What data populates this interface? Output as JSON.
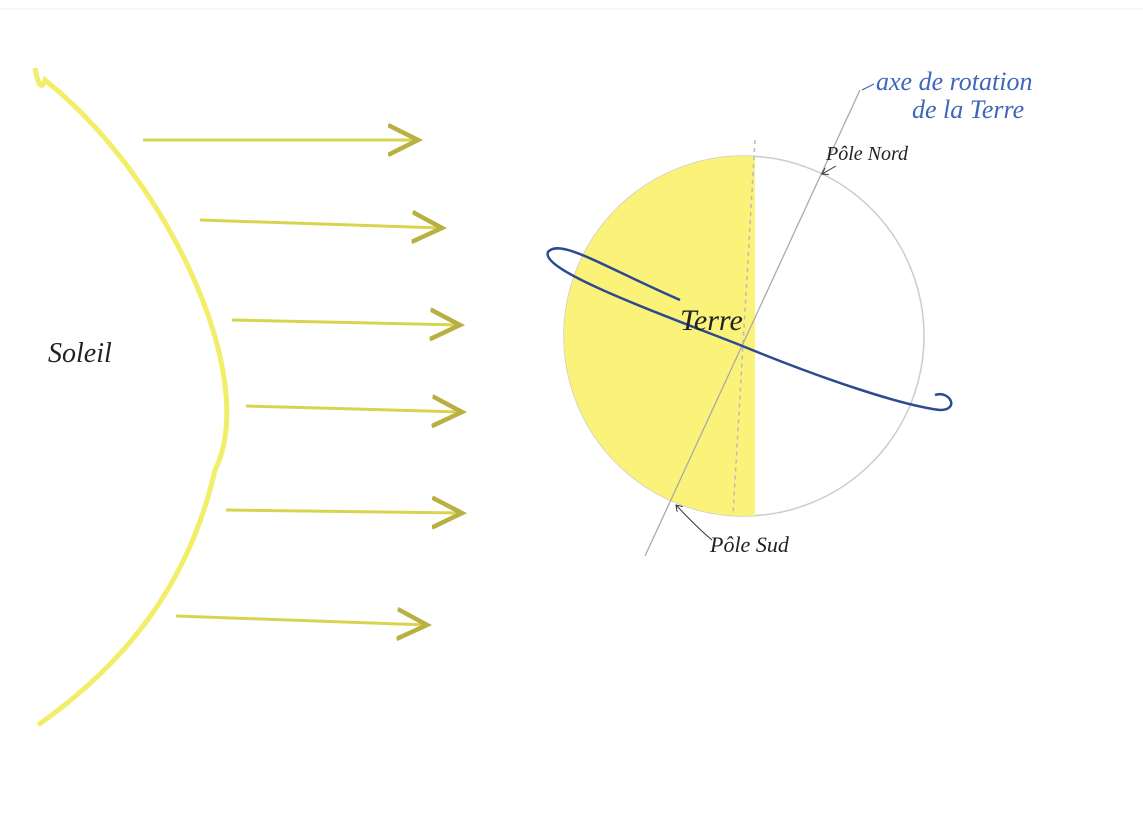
{
  "labels": {
    "sun": "Soleil",
    "earth": "Terre",
    "north_pole": "Pôle Nord",
    "south_pole": "Pôle Sud",
    "axis": [
      "axe de rotation",
      "de la Terre"
    ]
  }
}
